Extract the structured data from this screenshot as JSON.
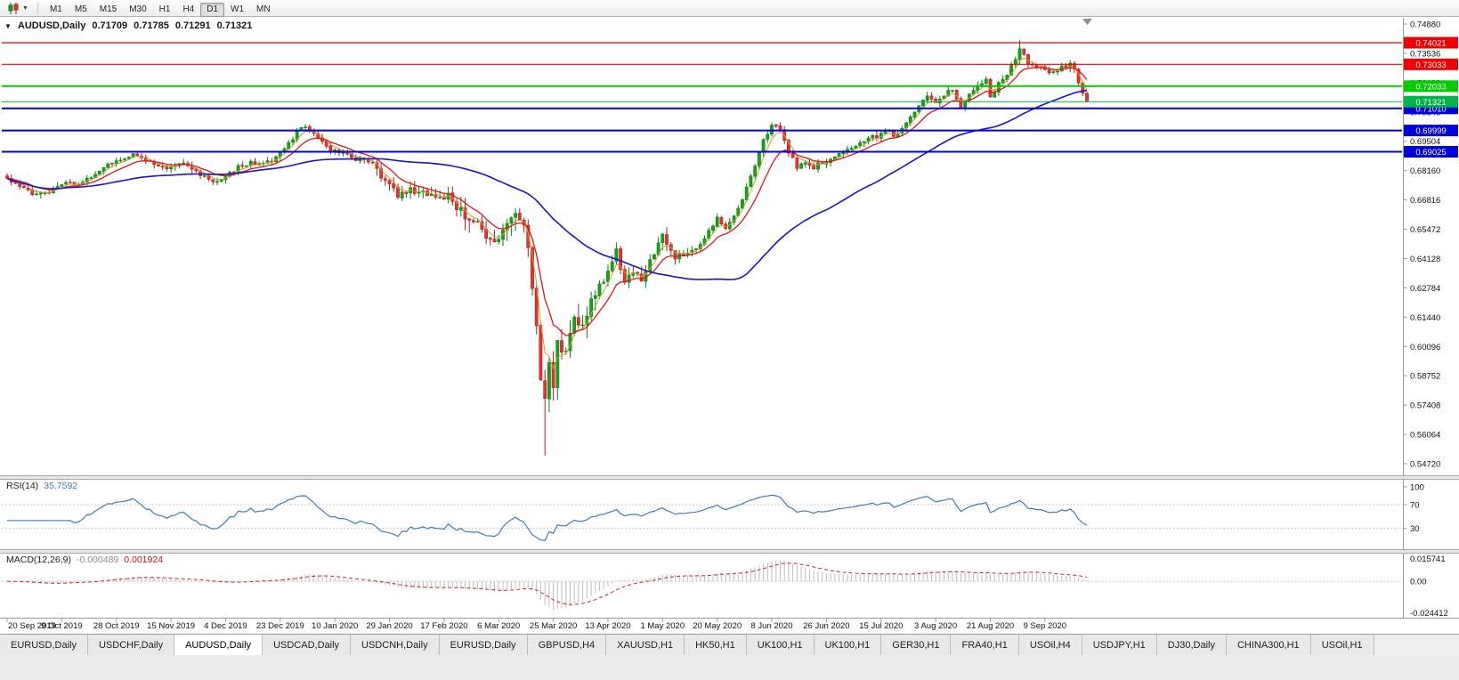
{
  "toolbar": {
    "timeframes": [
      "M1",
      "M5",
      "M15",
      "M30",
      "H1",
      "H4",
      "D1",
      "W1",
      "MN"
    ],
    "active_timeframe": "D1",
    "chart_type_icon": "candlestick-chart-icon"
  },
  "chart": {
    "symbol_period": "AUDUSD,Daily",
    "ohlc": {
      "open": "0.71709",
      "high": "0.71785",
      "low": "0.71291",
      "close": "0.71321"
    }
  },
  "rsi": {
    "title": "RSI(14)",
    "value": "35.7592"
  },
  "macd": {
    "title": "MACD(12,26,9)",
    "main_value": "-0.000489",
    "signal_value": "0.001924"
  },
  "tabs": {
    "active_index": 2,
    "items": [
      "EURUSD,Daily",
      "USDCHF,Daily",
      "AUDUSD,Daily",
      "USDCAD,Daily",
      "USDCNH,Daily",
      "EURUSD,Daily",
      "GBPUSD,H4",
      "XAUUSD,H1",
      "HK50,H1",
      "UK100,H1",
      "UK100,H1",
      "GER30,H1",
      "FRA40,H1",
      "USOil,H4",
      "USDJPY,H1",
      "DJ30,Daily",
      "CHINA300,H1",
      "USOil,H1"
    ]
  },
  "chart_data": {
    "type": "candlestick",
    "symbol": "AUDUSD",
    "timeframe": "Daily",
    "bars": 258,
    "ohlc_current": {
      "open": 0.71709,
      "high": 0.71785,
      "low": 0.71291,
      "close": 0.71321
    },
    "current_price": 0.71321,
    "current_price_label": "0.71321",
    "current_price_color": "#00B44A",
    "candle_colors": {
      "up": "#18A21B",
      "up_border": "#0C7F10",
      "down": "#E23434",
      "down_border": "#B02020"
    },
    "close_anchors": [
      [
        0,
        0.6775
      ],
      [
        4,
        0.674
      ],
      [
        7,
        0.67
      ],
      [
        10,
        0.6718
      ],
      [
        14,
        0.6752
      ],
      [
        19,
        0.6772
      ],
      [
        23,
        0.6822
      ],
      [
        26,
        0.6868
      ],
      [
        30,
        0.6886
      ],
      [
        34,
        0.6852
      ],
      [
        38,
        0.683
      ],
      [
        42,
        0.6846
      ],
      [
        46,
        0.68
      ],
      [
        49,
        0.6762
      ],
      [
        52,
        0.6796
      ],
      [
        55,
        0.683
      ],
      [
        58,
        0.6856
      ],
      [
        61,
        0.684
      ],
      [
        64,
        0.6882
      ],
      [
        67,
        0.6936
      ],
      [
        69,
        0.6992
      ],
      [
        71,
        0.7023
      ],
      [
        73,
        0.6996
      ],
      [
        75,
        0.6942
      ],
      [
        78,
        0.6906
      ],
      [
        81,
        0.6882
      ],
      [
        84,
        0.6866
      ],
      [
        87,
        0.6846
      ],
      [
        90,
        0.6762
      ],
      [
        93,
        0.6702
      ],
      [
        96,
        0.6732
      ],
      [
        99,
        0.6712
      ],
      [
        102,
        0.6692
      ],
      [
        105,
        0.6702
      ],
      [
        108,
        0.6622
      ],
      [
        111,
        0.6582
      ],
      [
        114,
        0.6522
      ],
      [
        116,
        0.6462
      ],
      [
        119,
        0.6602
      ],
      [
        121,
        0.6642
      ],
      [
        123,
        0.6582
      ],
      [
        125,
        0.6292
      ],
      [
        126,
        0.6122
      ],
      [
        127,
        0.5882
      ],
      [
        128,
        0.5762
      ],
      [
        129,
        0.5932
      ],
      [
        130,
        0.5802
      ],
      [
        131,
        0.6022
      ],
      [
        133,
        0.5962
      ],
      [
        135,
        0.6132
      ],
      [
        137,
        0.6082
      ],
      [
        139,
        0.6202
      ],
      [
        141,
        0.6282
      ],
      [
        143,
        0.6352
      ],
      [
        145,
        0.6442
      ],
      [
        147,
        0.6302
      ],
      [
        149,
        0.6362
      ],
      [
        151,
        0.6322
      ],
      [
        153,
        0.6402
      ],
      [
        156,
        0.6512
      ],
      [
        159,
        0.6422
      ],
      [
        162,
        0.6452
      ],
      [
        165,
        0.6472
      ],
      [
        169,
        0.6602
      ],
      [
        171,
        0.6552
      ],
      [
        174,
        0.6642
      ],
      [
        177,
        0.6782
      ],
      [
        180,
        0.6952
      ],
      [
        182,
        0.7019
      ],
      [
        184,
        0.7002
      ],
      [
        186,
        0.6902
      ],
      [
        188,
        0.6832
      ],
      [
        190,
        0.6862
      ],
      [
        192,
        0.6832
      ],
      [
        195,
        0.6864
      ],
      [
        198,
        0.6902
      ],
      [
        201,
        0.6912
      ],
      [
        204,
        0.6952
      ],
      [
        207,
        0.6976
      ],
      [
        209,
        0.7002
      ],
      [
        211,
        0.6982
      ],
      [
        213,
        0.7002
      ],
      [
        215,
        0.7062
      ],
      [
        217,
        0.7112
      ],
      [
        219,
        0.7152
      ],
      [
        221,
        0.7122
      ],
      [
        223,
        0.7162
      ],
      [
        225,
        0.7186
      ],
      [
        227,
        0.7112
      ],
      [
        229,
        0.7172
      ],
      [
        231,
        0.7202
      ],
      [
        233,
        0.7242
      ],
      [
        234,
        0.7162
      ],
      [
        236,
        0.7212
      ],
      [
        238,
        0.7256
      ],
      [
        240,
        0.7332
      ],
      [
        241,
        0.7375
      ],
      [
        242,
        0.7342
      ],
      [
        243,
        0.7312
      ],
      [
        245,
        0.7282
      ],
      [
        247,
        0.7286
      ],
      [
        249,
        0.7262
      ],
      [
        251,
        0.7286
      ],
      [
        253,
        0.7306
      ],
      [
        254,
        0.7292
      ],
      [
        255,
        0.7221
      ],
      [
        256,
        0.7171
      ],
      [
        257,
        0.71321
      ]
    ],
    "forced_bars": [
      {
        "index": 128,
        "low": 0.551
      },
      {
        "index": 241,
        "high": 0.7414
      }
    ],
    "horizontal_lines": [
      {
        "price": 0.74021,
        "label": "0.74021",
        "color": "#F00000",
        "width": 1.2
      },
      {
        "price": 0.73033,
        "label": "0.73033",
        "color": "#F00000",
        "width": 1.2
      },
      {
        "price": 0.72033,
        "label": "0.72033",
        "color": "#00CC00",
        "width": 2
      },
      {
        "price": 0.7101,
        "label": "0.71010",
        "color": "#0000DC",
        "width": 2
      },
      {
        "price": 0.69999,
        "label": "0.69999",
        "color": "#0000DC",
        "width": 2
      },
      {
        "price": 0.69025,
        "label": "0.69025",
        "color": "#0000DC",
        "width": 2
      }
    ],
    "moving_averages": [
      {
        "period": 4,
        "type": "ema",
        "color": "#C9A227",
        "width": 1
      },
      {
        "period": 10,
        "type": "ema",
        "color": "#E01616",
        "width": 1.3
      },
      {
        "period": 50,
        "type": "sma",
        "color": "#1515CF",
        "width": 1.6
      }
    ],
    "y_axis": {
      "top_value": 0.7488,
      "bottom_value": 0.5472,
      "labels": [
        "0.74880",
        "0.73536",
        "0.72192",
        "0.70848",
        "0.69504",
        "0.68160",
        "0.66816",
        "0.65472",
        "0.64128",
        "0.62784",
        "0.61440",
        "0.60096",
        "0.58752",
        "0.57408",
        "0.56064",
        "0.54720"
      ]
    },
    "x_axis": {
      "bars_per_label": 13,
      "labels": [
        "20 Sep 2019",
        "9 Oct 2019",
        "28 Oct 2019",
        "15 Nov 2019",
        "4 Dec 2019",
        "23 Dec 2019",
        "10 Jan 2020",
        "29 Jan 2020",
        "17 Feb 2020",
        "6 Mar 2020",
        "25 Mar 2020",
        "13 Apr 2020",
        "1 May 2020",
        "20 May 2020",
        "8 Jun 2020",
        "26 Jun 2020",
        "15 Jul 2020",
        "3 Aug 2020",
        "21 Aug 2020",
        "9 Sep 2020"
      ]
    },
    "indicators": [
      {
        "name": "RSI",
        "params": "14",
        "value": 35.7592,
        "color": "#3E7BC0",
        "levels": [
          70,
          30
        ],
        "scale_labels": [
          "100",
          "70",
          "30"
        ]
      },
      {
        "name": "MACD",
        "params": "12,26,9",
        "main": -0.000489,
        "signal": 0.001924,
        "scale_top": 0.015741,
        "scale_bottom": -0.024412,
        "scale_labels": [
          "0.015741",
          "0.00",
          "-0.024412"
        ],
        "histogram_color": "#BDBDBD",
        "signal_color": "#D02020"
      }
    ]
  }
}
